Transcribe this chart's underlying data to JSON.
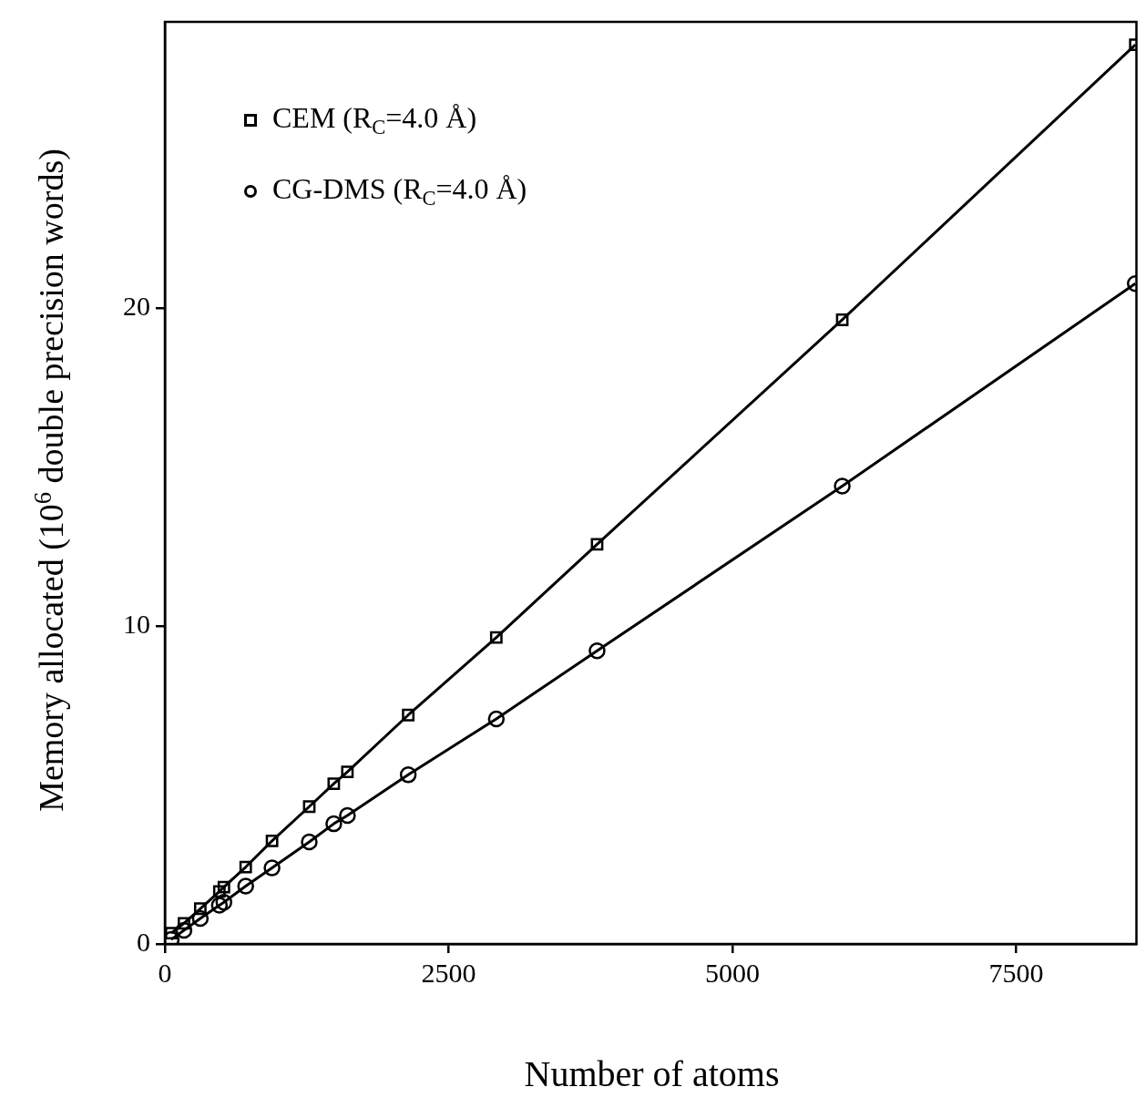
{
  "chart_data": {
    "type": "line",
    "xlabel": "Number of atoms",
    "ylabel": "Memory allocated (10$^{6}$ double precision words)",
    "x": [
      56,
      168,
      312,
      480,
      520,
      712,
      944,
      1272,
      1488,
      1608,
      2144,
      2920,
      3808,
      5968,
      8550
    ],
    "series": [
      {
        "name": "CEM (R$_{C}$=4.0 Å)",
        "color": "#000000",
        "marker": "square",
        "values": [
          0.34,
          0.65,
          1.11,
          1.65,
          1.79,
          2.42,
          3.24,
          4.32,
          5.04,
          5.41,
          7.2,
          9.64,
          12.57,
          19.63,
          28.28
        ]
      },
      {
        "name": "CG-DMS (R$_{C}$=4.0 Å)",
        "color": "#000000",
        "marker": "circle",
        "values": [
          0.14,
          0.43,
          0.8,
          1.22,
          1.31,
          1.82,
          2.39,
          3.21,
          3.78,
          4.04,
          5.32,
          7.08,
          9.22,
          14.4,
          20.77
        ]
      }
    ],
    "xlim": [
      0,
      8560
    ],
    "xticks": [
      0,
      2500,
      5000,
      7500
    ],
    "ylim": [
      0,
      29
    ],
    "yticks": [
      0,
      10,
      20
    ],
    "grid": false,
    "legend": "top left",
    "line_style": "solid"
  }
}
